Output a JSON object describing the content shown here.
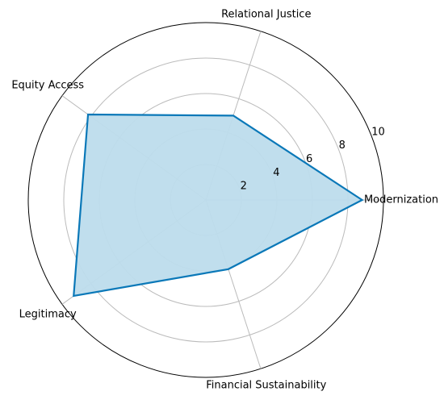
{
  "chart_data": {
    "type": "radar",
    "categories": [
      "Modernization",
      "Relational Justice",
      "Equity Access",
      "Legitimacy",
      "Financial Sustainability"
    ],
    "values": [
      8.8,
      5.0,
      8.2,
      9.2,
      4.1
    ],
    "color": "#0a78b8",
    "fill_color": "#bddcec",
    "ylim": [
      0,
      10
    ],
    "yticks": [
      2,
      4,
      6,
      8,
      10
    ],
    "grid": true
  }
}
